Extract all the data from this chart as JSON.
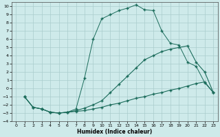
{
  "xlabel": "Humidex (Indice chaleur)",
  "bg_color": "#ceeaea",
  "grid_color": "#aacccc",
  "line_color": "#1a6b5a",
  "xlim": [
    -0.5,
    23.5
  ],
  "ylim": [
    -4,
    10.5
  ],
  "xticks": [
    0,
    1,
    2,
    3,
    4,
    5,
    6,
    7,
    8,
    9,
    10,
    11,
    12,
    13,
    14,
    15,
    16,
    17,
    18,
    19,
    20,
    21,
    22,
    23
  ],
  "yticks": [
    -4,
    -3,
    -2,
    -1,
    0,
    1,
    2,
    3,
    4,
    5,
    6,
    7,
    8,
    9,
    10
  ],
  "line1_x": [
    1,
    2,
    3,
    4,
    5,
    6,
    7,
    8,
    9,
    10,
    11,
    12,
    13,
    14,
    15,
    16,
    17,
    18,
    19,
    20,
    21,
    22,
    23
  ],
  "line1_y": [
    -1,
    -2.3,
    -2.5,
    -2.9,
    -3.0,
    -2.9,
    -2.8,
    -2.7,
    -2.5,
    -2.3,
    -2.0,
    -1.8,
    -1.5,
    -1.2,
    -1.0,
    -0.7,
    -0.5,
    -0.2,
    0.0,
    0.3,
    0.6,
    0.8,
    -0.5
  ],
  "line2_x": [
    1,
    2,
    3,
    4,
    5,
    6,
    7,
    8,
    9,
    10,
    11,
    12,
    13,
    14,
    15,
    16,
    17,
    18,
    19,
    20,
    21,
    22,
    23
  ],
  "line2_y": [
    -1,
    -2.3,
    -2.5,
    -2.9,
    -3.0,
    -2.9,
    -2.7,
    -2.4,
    -2.0,
    -1.5,
    -0.5,
    0.5,
    1.5,
    2.5,
    3.5,
    4.0,
    4.5,
    4.8,
    5.0,
    5.2,
    3.2,
    2.0,
    -0.5
  ],
  "line3_x": [
    1,
    2,
    3,
    4,
    5,
    6,
    7,
    8,
    9,
    10,
    11,
    12,
    13,
    14,
    15,
    16,
    17,
    18,
    19,
    20,
    21,
    22,
    23
  ],
  "line3_y": [
    -1,
    -2.3,
    -2.5,
    -2.9,
    -3.0,
    -2.9,
    -2.5,
    1.3,
    6.0,
    8.5,
    9.0,
    9.5,
    9.8,
    10.2,
    9.6,
    9.5,
    7.0,
    5.5,
    5.3,
    3.2,
    2.7,
    0.7,
    -0.5
  ]
}
